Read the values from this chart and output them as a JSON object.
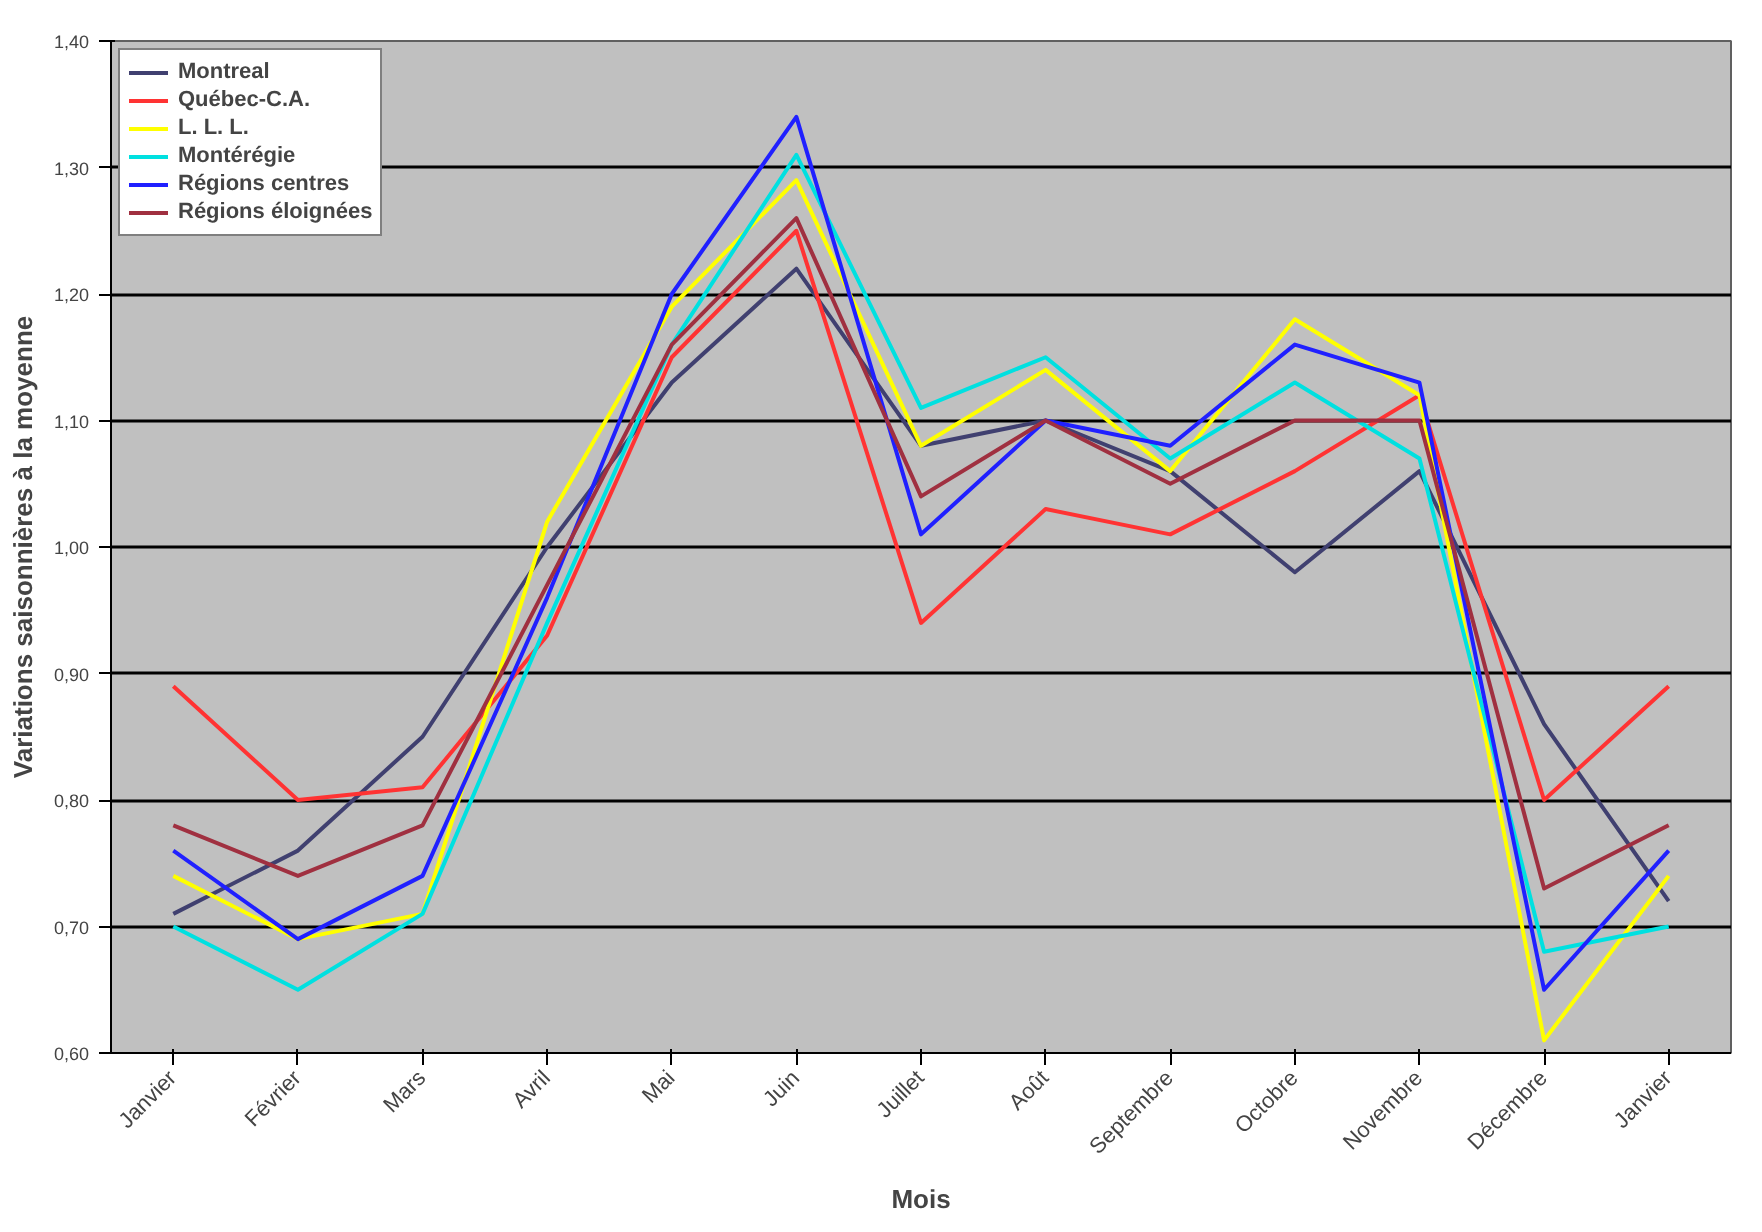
{
  "chart_data": {
    "type": "line",
    "xlabel": "Mois",
    "ylabel": "Variations saisonnières à la moyenne",
    "categories": [
      "Janvier",
      "Février",
      "Mars",
      "Avril",
      "Mai",
      "Juin",
      "Juillet",
      "Août",
      "Septembre",
      "Octobre",
      "Novembre",
      "Décembre",
      "Janvier"
    ],
    "ylim": [
      0.6,
      1.4
    ],
    "yticks": [
      {
        "value": 0.6,
        "label": "0,60"
      },
      {
        "value": 0.7,
        "label": "0,70"
      },
      {
        "value": 0.8,
        "label": "0,80"
      },
      {
        "value": 0.9,
        "label": "0,90"
      },
      {
        "value": 1.0,
        "label": "1,00"
      },
      {
        "value": 1.1,
        "label": "1,10"
      },
      {
        "value": 1.2,
        "label": "1,20"
      },
      {
        "value": 1.3,
        "label": "1,30"
      },
      {
        "value": 1.4,
        "label": "1,40"
      }
    ],
    "grid": "y",
    "legend": "top left",
    "marker": "none",
    "line_style": "solid",
    "series": [
      {
        "name": "Montreal",
        "color": "#404070",
        "values": [
          0.71,
          0.76,
          0.85,
          1.0,
          1.13,
          1.22,
          1.08,
          1.1,
          1.06,
          0.98,
          1.06,
          0.86,
          0.72
        ]
      },
      {
        "name": "Québec-C.A.",
        "color": "#ff3333",
        "values": [
          0.89,
          0.8,
          0.81,
          0.93,
          1.15,
          1.25,
          0.94,
          1.03,
          1.01,
          1.06,
          1.12,
          0.8,
          0.89
        ]
      },
      {
        "name": "L. L. L.",
        "color": "#ffff00",
        "values": [
          0.74,
          0.69,
          0.71,
          1.02,
          1.19,
          1.29,
          1.08,
          1.14,
          1.06,
          1.18,
          1.12,
          0.61,
          0.74
        ]
      },
      {
        "name": "Montérégie",
        "color": "#00e0e0",
        "values": [
          0.7,
          0.65,
          0.71,
          0.94,
          1.16,
          1.31,
          1.11,
          1.15,
          1.07,
          1.13,
          1.07,
          0.68,
          0.7
        ]
      },
      {
        "name": "Régions centres",
        "color": "#2020ff",
        "values": [
          0.76,
          0.69,
          0.74,
          0.96,
          1.2,
          1.34,
          1.01,
          1.1,
          1.08,
          1.16,
          1.13,
          0.65,
          0.76
        ]
      },
      {
        "name": "Régions éloignées",
        "color": "#a03040",
        "values": [
          0.78,
          0.74,
          0.78,
          0.97,
          1.16,
          1.26,
          1.04,
          1.1,
          1.05,
          1.1,
          1.1,
          0.73,
          0.78
        ]
      }
    ]
  }
}
